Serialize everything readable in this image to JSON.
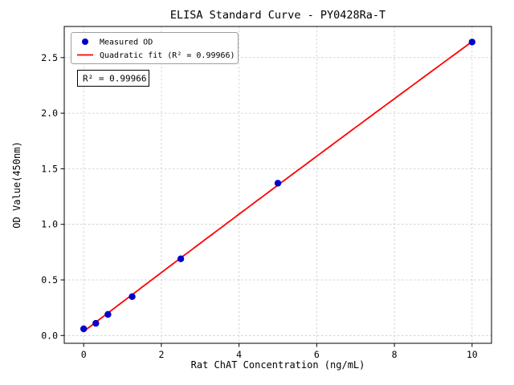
{
  "chart_data": {
    "type": "scatter",
    "title": "ELISA Standard Curve - PY0428Ra-T",
    "xlabel": "Rat ChAT Concentration (ng/mL)",
    "ylabel": "OD Value(450nm)",
    "xlim": [
      -0.5,
      10.5
    ],
    "ylim": [
      -0.07,
      2.78
    ],
    "xticks": [
      0,
      2,
      4,
      6,
      8,
      10
    ],
    "yticks": [
      0.0,
      0.5,
      1.0,
      1.5,
      2.0,
      2.5
    ],
    "grid": true,
    "grid_style": "dashed",
    "legend_position": "upper left",
    "series": [
      {
        "name": "Measured OD",
        "type": "scatter",
        "color": "#0000cd",
        "x": [
          0,
          0.3125,
          0.625,
          1.25,
          2.5,
          5,
          10
        ],
        "y": [
          0.06,
          0.11,
          0.19,
          0.35,
          0.69,
          1.37,
          2.64
        ]
      },
      {
        "name": "Quadratic fit (R² = 0.99966)",
        "type": "line",
        "color": "#ff0000",
        "fit_coefficients": {
          "a": 0.0366,
          "b": 0.2657,
          "c": -0.0005
        },
        "x_range": [
          0,
          10
        ]
      }
    ],
    "annotation": "R² = 0.99966",
    "r_squared": 0.99966,
    "colors": {
      "measured": "#0000cd",
      "fit": "#ff0000",
      "grid": "#c9c9c9",
      "axis": "#000000",
      "legend_border": "#9e9e9e",
      "background": "#ffffff"
    }
  }
}
